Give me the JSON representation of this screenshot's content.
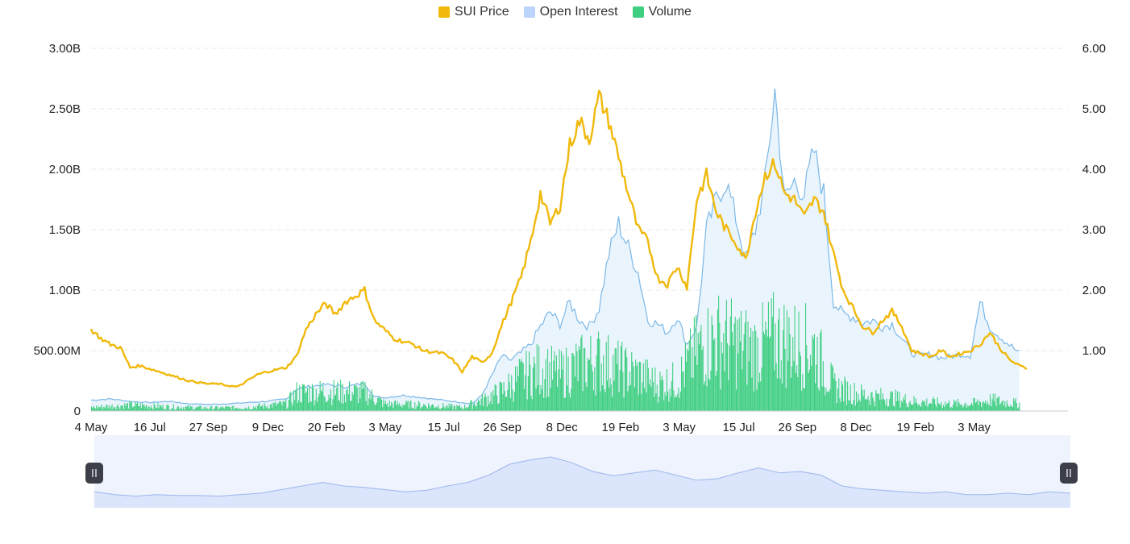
{
  "legend": {
    "price_label": "SUI Price",
    "oi_label": "Open Interest",
    "volume_label": "Volume"
  },
  "colors": {
    "price": "#f0b90b",
    "oi_line": "#7ab8e8",
    "oi_fill": "#eaf4fd",
    "volume": "#3fcf81",
    "grid": "#e8e8e8",
    "navigator_fill": "#dbe5fb",
    "navigator_line": "#9db6ee",
    "navigator_bg": "#eef3fd",
    "handle": "#3c3f4a",
    "legend_oi_swatch": "#bcd4fb"
  },
  "chart_data": {
    "type": "line",
    "left_axis": {
      "ticks": [
        "0",
        "500.00M",
        "1.00B",
        "1.50B",
        "2.00B",
        "2.50B",
        "3.00B"
      ],
      "range": [
        0,
        3000000000
      ]
    },
    "right_axis": {
      "ticks": [
        "1.00",
        "2.00",
        "3.00",
        "4.00",
        "5.00",
        "6.00"
      ],
      "range": [
        0,
        6
      ]
    },
    "x_ticks": [
      "4 May",
      "16 Jul",
      "27 Sep",
      "9 Dec",
      "20 Feb",
      "3 May",
      "15 Jul",
      "26 Sep",
      "8 Dec",
      "19 Feb",
      "3 May",
      "15 Jul",
      "26 Sep",
      "8 Dec",
      "19 Feb",
      "3 May"
    ],
    "x_index_range": [
      0,
      100
    ],
    "x_tick_index": [
      0,
      6,
      12,
      18.1,
      24.1,
      30.1,
      36.1,
      42.1,
      48.2,
      54.2,
      60.2,
      66.3,
      72.3,
      78.3,
      84.4,
      90.4
    ],
    "grid": true,
    "legend_position": "top-center",
    "series": [
      {
        "name": "SUI Price",
        "axis": "right",
        "points": [
          [
            0,
            1.35
          ],
          [
            1,
            1.2
          ],
          [
            2,
            1.1
          ],
          [
            3,
            1.05
          ],
          [
            4,
            0.72
          ],
          [
            5,
            0.75
          ],
          [
            6,
            0.7
          ],
          [
            7,
            0.65
          ],
          [
            8,
            0.6
          ],
          [
            9,
            0.55
          ],
          [
            10,
            0.5
          ],
          [
            12,
            0.45
          ],
          [
            13,
            0.45
          ],
          [
            14,
            0.42
          ],
          [
            15,
            0.4
          ],
          [
            16,
            0.5
          ],
          [
            17,
            0.6
          ],
          [
            18,
            0.65
          ],
          [
            20,
            0.72
          ],
          [
            21,
            0.9
          ],
          [
            22,
            1.35
          ],
          [
            23,
            1.6
          ],
          [
            24,
            1.78
          ],
          [
            25,
            1.6
          ],
          [
            26,
            1.8
          ],
          [
            27,
            1.9
          ],
          [
            28,
            2.0
          ],
          [
            29,
            1.5
          ],
          [
            30,
            1.35
          ],
          [
            31,
            1.2
          ],
          [
            33,
            1.1
          ],
          [
            34,
            1.0
          ],
          [
            36,
            0.95
          ],
          [
            37,
            0.85
          ],
          [
            38,
            0.65
          ],
          [
            39,
            0.9
          ],
          [
            40,
            0.8
          ],
          [
            41,
            0.95
          ],
          [
            42,
            1.4
          ],
          [
            43,
            1.8
          ],
          [
            44,
            2.2
          ],
          [
            45,
            2.8
          ],
          [
            46,
            3.6
          ],
          [
            47,
            3.1
          ],
          [
            48,
            3.4
          ],
          [
            49,
            4.4
          ],
          [
            50,
            4.8
          ],
          [
            51,
            4.5
          ],
          [
            52,
            5.2
          ],
          [
            53,
            4.8
          ],
          [
            54,
            4.2
          ],
          [
            55,
            3.6
          ],
          [
            56,
            3.0
          ],
          [
            57,
            2.8
          ],
          [
            58,
            2.2
          ],
          [
            59,
            2.1
          ],
          [
            60,
            2.4
          ],
          [
            61,
            2.05
          ],
          [
            62,
            3.5
          ],
          [
            63,
            3.9
          ],
          [
            64,
            3.3
          ],
          [
            65,
            3.0
          ],
          [
            66,
            2.8
          ],
          [
            67,
            2.5
          ],
          [
            68,
            3.3
          ],
          [
            69,
            3.9
          ],
          [
            70,
            4.1
          ],
          [
            71,
            3.6
          ],
          [
            72,
            3.5
          ],
          [
            73,
            3.2
          ],
          [
            74,
            3.5
          ],
          [
            75,
            3.3
          ],
          [
            76,
            2.6
          ],
          [
            77,
            2.0
          ],
          [
            78,
            1.7
          ],
          [
            79,
            1.4
          ],
          [
            80,
            1.3
          ],
          [
            81,
            1.5
          ],
          [
            82,
            1.65
          ],
          [
            83,
            1.4
          ],
          [
            84,
            1.0
          ],
          [
            85,
            0.95
          ],
          [
            86,
            0.9
          ],
          [
            87,
            1.0
          ],
          [
            88,
            0.9
          ],
          [
            89,
            0.95
          ],
          [
            90,
            1.0
          ],
          [
            91,
            1.1
          ],
          [
            92,
            1.3
          ],
          [
            93,
            1.05
          ],
          [
            94,
            0.85
          ],
          [
            95,
            0.75
          ],
          [
            96,
            0.7
          ]
        ]
      },
      {
        "name": "Open Interest",
        "axis": "left",
        "points": [
          [
            0,
            90000000
          ],
          [
            2,
            100000000
          ],
          [
            4,
            80000000
          ],
          [
            6,
            70000000
          ],
          [
            8,
            80000000
          ],
          [
            10,
            60000000
          ],
          [
            12,
            55000000
          ],
          [
            14,
            60000000
          ],
          [
            16,
            70000000
          ],
          [
            18,
            80000000
          ],
          [
            20,
            100000000
          ],
          [
            21,
            180000000
          ],
          [
            22,
            200000000
          ],
          [
            24,
            220000000
          ],
          [
            26,
            200000000
          ],
          [
            28,
            230000000
          ],
          [
            29,
            120000000
          ],
          [
            30,
            110000000
          ],
          [
            32,
            130000000
          ],
          [
            34,
            110000000
          ],
          [
            36,
            90000000
          ],
          [
            38,
            70000000
          ],
          [
            39,
            60000000
          ],
          [
            40,
            130000000
          ],
          [
            42,
            450000000
          ],
          [
            43,
            420000000
          ],
          [
            44,
            480000000
          ],
          [
            45,
            550000000
          ],
          [
            46,
            700000000
          ],
          [
            47,
            820000000
          ],
          [
            48,
            720000000
          ],
          [
            49,
            900000000
          ],
          [
            50,
            750000000
          ],
          [
            51,
            700000000
          ],
          [
            52,
            850000000
          ],
          [
            53,
            1300000000
          ],
          [
            54,
            1550000000
          ],
          [
            55,
            1350000000
          ],
          [
            56,
            1150000000
          ],
          [
            57,
            750000000
          ],
          [
            58,
            720000000
          ],
          [
            59,
            650000000
          ],
          [
            60,
            780000000
          ],
          [
            61,
            550000000
          ],
          [
            62,
            700000000
          ],
          [
            63,
            1500000000
          ],
          [
            64,
            1750000000
          ],
          [
            65,
            1900000000
          ],
          [
            66,
            1600000000
          ],
          [
            67,
            1250000000
          ],
          [
            68,
            1500000000
          ],
          [
            69,
            1900000000
          ],
          [
            70,
            2650000000
          ],
          [
            71,
            1750000000
          ],
          [
            72,
            1900000000
          ],
          [
            73,
            1800000000
          ],
          [
            74,
            2150000000
          ],
          [
            75,
            1800000000
          ],
          [
            76,
            900000000
          ],
          [
            77,
            800000000
          ],
          [
            78,
            780000000
          ],
          [
            79,
            730000000
          ],
          [
            80,
            750000000
          ],
          [
            81,
            700000000
          ],
          [
            82,
            720000000
          ],
          [
            83,
            600000000
          ],
          [
            84,
            480000000
          ],
          [
            85,
            460000000
          ],
          [
            86,
            470000000
          ],
          [
            87,
            440000000
          ],
          [
            88,
            450000000
          ],
          [
            89,
            470000000
          ],
          [
            90,
            460000000
          ],
          [
            91,
            900000000
          ],
          [
            92,
            700000000
          ],
          [
            93,
            620000000
          ],
          [
            94,
            550000000
          ],
          [
            95,
            480000000
          ]
        ]
      },
      {
        "name": "Volume",
        "axis": "left",
        "points": [
          [
            0,
            30000000
          ],
          [
            4,
            50000000
          ],
          [
            8,
            35000000
          ],
          [
            12,
            25000000
          ],
          [
            16,
            30000000
          ],
          [
            20,
            60000000
          ],
          [
            21,
            150000000
          ],
          [
            24,
            160000000
          ],
          [
            28,
            150000000
          ],
          [
            30,
            60000000
          ],
          [
            34,
            50000000
          ],
          [
            38,
            30000000
          ],
          [
            40,
            90000000
          ],
          [
            42,
            160000000
          ],
          [
            44,
            280000000
          ],
          [
            46,
            350000000
          ],
          [
            48,
            300000000
          ],
          [
            50,
            380000000
          ],
          [
            52,
            420000000
          ],
          [
            54,
            350000000
          ],
          [
            56,
            300000000
          ],
          [
            58,
            220000000
          ],
          [
            60,
            250000000
          ],
          [
            62,
            500000000
          ],
          [
            64,
            600000000
          ],
          [
            66,
            550000000
          ],
          [
            68,
            500000000
          ],
          [
            70,
            600000000
          ],
          [
            72,
            550000000
          ],
          [
            74,
            520000000
          ],
          [
            76,
            200000000
          ],
          [
            78,
            150000000
          ],
          [
            80,
            120000000
          ],
          [
            82,
            110000000
          ],
          [
            84,
            80000000
          ],
          [
            86,
            70000000
          ],
          [
            88,
            60000000
          ],
          [
            90,
            60000000
          ],
          [
            92,
            90000000
          ],
          [
            94,
            70000000
          ],
          [
            95,
            60000000
          ]
        ]
      }
    ]
  },
  "navigator": {
    "points": [
      0.22,
      0.18,
      0.16,
      0.18,
      0.17,
      0.17,
      0.16,
      0.18,
      0.2,
      0.25,
      0.3,
      0.35,
      0.3,
      0.28,
      0.25,
      0.22,
      0.24,
      0.3,
      0.35,
      0.45,
      0.6,
      0.66,
      0.7,
      0.62,
      0.5,
      0.44,
      0.48,
      0.52,
      0.45,
      0.38,
      0.4,
      0.48,
      0.55,
      0.48,
      0.5,
      0.45,
      0.3,
      0.26,
      0.24,
      0.22,
      0.2,
      0.22,
      0.18,
      0.18,
      0.2,
      0.18,
      0.22,
      0.2
    ]
  }
}
